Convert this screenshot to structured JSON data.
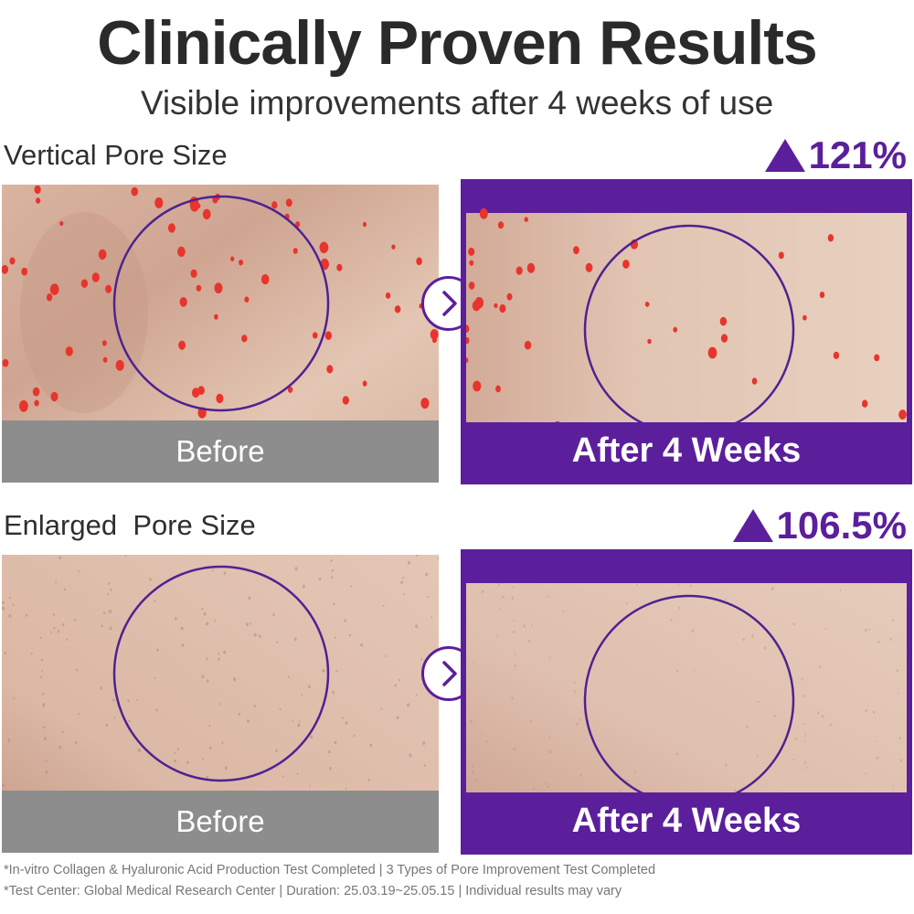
{
  "header": {
    "title": "Clinically Proven Results",
    "subtitle": "Visible improvements after 4 weeks of use"
  },
  "sections": [
    {
      "label": "Vertical Pore Size",
      "stat": "121%",
      "before_caption": "Before",
      "after_caption": "After 4 Weeks"
    },
    {
      "label": "Enlarged  Pore Size",
      "stat": "106.5%",
      "before_caption": "Before",
      "after_caption": "After 4 Weeks"
    }
  ],
  "footnotes": [
    "*In-vitro Collagen & Hyaluronic Acid Production Test Completed | 3 Types of Pore Improvement Test Completed",
    "*Test Center: Global Medical Research Center  |  Duration: 25.03.19~25.05.15 | Individual results may vary"
  ],
  "colors": {
    "accent": "#5b1f9c",
    "before_bar": "#8d8d8d",
    "pore_marker": "#e8342c"
  },
  "icons": [
    "triangle-up-icon",
    "chevron-right-icon"
  ]
}
